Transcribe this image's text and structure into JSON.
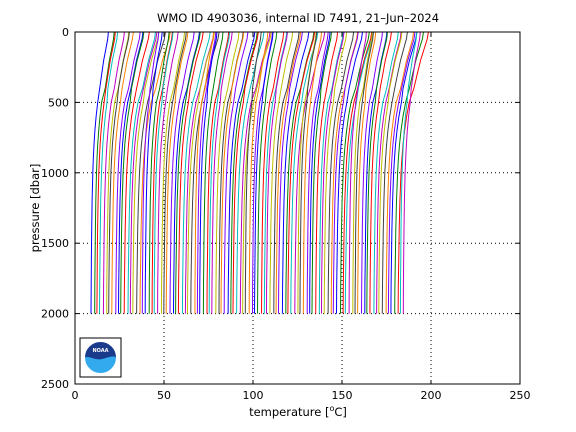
{
  "chart_data": {
    "type": "line",
    "title": "WMO ID 4903036, internal ID 7491, 21–Jun–2024",
    "xlabel": "temperature [",
    "xlabel_unit": "o",
    "xlabel_unit_tail": "C]",
    "ylabel": "pressure [dbar]",
    "xlim": [
      0,
      250
    ],
    "ylim": [
      2500,
      0
    ],
    "y_reversed": true,
    "x_ticks": [
      "0",
      "50",
      "100",
      "150",
      "200",
      "250"
    ],
    "y_ticks": [
      "0",
      "500",
      "1000",
      "1500",
      "2000",
      "2500"
    ],
    "grid": true,
    "series_description": "Waterfall of temperature profiles, each profile offset along the temperature axis",
    "profile_count": 104,
    "profile_offset_start": 0,
    "profile_offset_step": 1.7,
    "profile_shape_pressure": [
      0,
      50,
      100,
      200,
      300,
      400,
      500,
      600,
      700,
      800,
      900,
      1000,
      1200,
      1400,
      1600,
      1800,
      2000
    ],
    "profile_shape_temperature": [
      22,
      21.5,
      20.5,
      18.5,
      17,
      15.5,
      14,
      12.8,
      11.9,
      11.2,
      10.7,
      10.3,
      9.8,
      9.5,
      9.3,
      9.1,
      9.0
    ],
    "logo_text": "NOAA"
  },
  "colors": {
    "series": [
      "#0000ff",
      "#008000",
      "#ff0000",
      "#00bfbf",
      "#bf00bf",
      "#bfbf00",
      "#404040",
      "#ff8000",
      "#8000ff"
    ],
    "frame": "#000000",
    "logo_blue_dark": "#1a3a8c",
    "logo_blue_light": "#33aaee"
  }
}
